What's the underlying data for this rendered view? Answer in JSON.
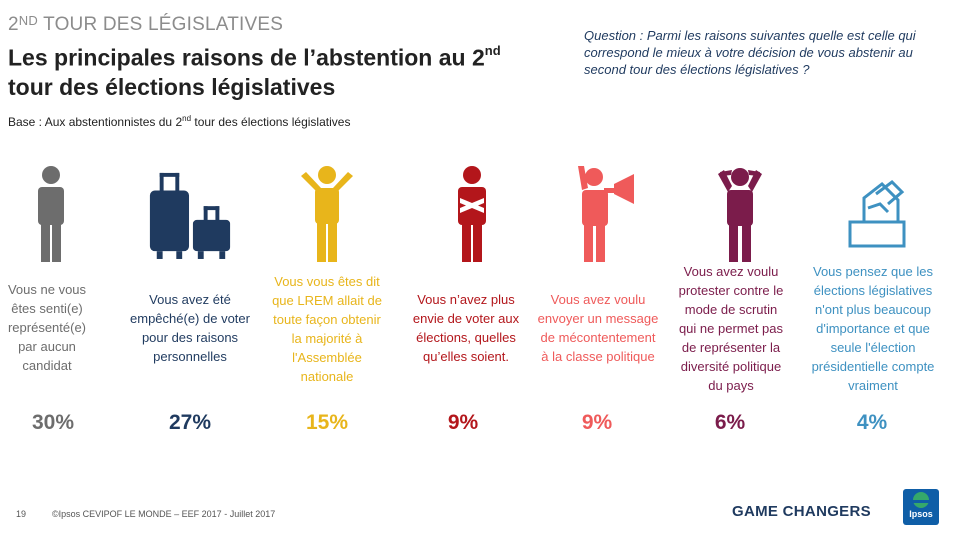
{
  "header": {
    "kicker_prefix": "2",
    "kicker_super": "ND",
    "kicker_rest": " TOUR DES LÉGISLATIVES",
    "title_part1": "Les principales raisons de l’abstention au 2",
    "title_super": "nd",
    "title_part2": " tour des élections législatives",
    "base_part1": "Base  :  Aux abstentionnistes du 2",
    "base_super": "nd",
    "base_part2": " tour des élections législatives",
    "question": "Question : Parmi les raisons suivantes quelle est celle qui correspond le mieux à votre décision de vous abstenir au second tour des élections législatives ?"
  },
  "chart_data": {
    "type": "bar",
    "title": "Les principales raisons de l’abstention au 2nd tour des élections législatives",
    "categories": [
      "Vous ne vous êtes senti(e) représenté(e) par aucun candidat",
      "Vous avez été empêché(e) de voter pour des raisons personnelles",
      "Vous vous êtes dit que LREM allait de toute façon obtenir la majorité à l'Assemblée nationale",
      "Vous n’avez plus envie de voter aux élections, quelles qu’elles soient.",
      "Vous avez voulu envoyer un message de mécontentement à la classe politique",
      "Vous avez voulu protester contre le mode de scrutin qui ne permet pas de représenter la diversité politique du pays",
      "Vous pensez que les élections législatives n'ont plus beaucoup d'importance et que seule l'élection présidentielle compte vraiment"
    ],
    "values": [
      30,
      27,
      15,
      9,
      9,
      6,
      4
    ],
    "labels": [
      "30%",
      "27%",
      "15%",
      "9%",
      "9%",
      "6%",
      "4%"
    ],
    "colors": [
      "#6d6d6d",
      "#1f3a5f",
      "#e8b51b",
      "#b3161b",
      "#ef5a5a",
      "#7b1c4b",
      "#3e91c1"
    ],
    "reason_lines": [
      [
        "Vous ne vous",
        "êtes senti(e)",
        "représenté(e)",
        "par aucun",
        "candidat"
      ],
      [
        "Vous avez été",
        "empêché(e) de voter",
        "pour des raisons",
        "personnelles"
      ],
      [
        "Vous vous êtes dit",
        "que LREM allait de",
        "toute façon obtenir",
        "la majorité à",
        "l'Assemblée",
        "nationale"
      ],
      [
        "Vous n’avez plus",
        "envie de voter aux",
        "élections, quelles",
        "qu’elles soient."
      ],
      [
        "Vous avez voulu",
        "envoyer un message",
        "de mécontentement",
        "à la classe politique"
      ],
      [
        "Vous avez voulu",
        "protester contre le",
        "mode de scrutin",
        "qui ne permet pas",
        "de représenter la",
        "diversité politique",
        "du pays"
      ],
      [
        "Vous pensez que les",
        "élections législatives",
        "n'ont plus beaucoup",
        "d'importance et que",
        "seule l'élection",
        "présidentielle compte",
        "vraiment"
      ]
    ],
    "icons": [
      "person-icon",
      "luggage-icon",
      "person-arms-open-icon",
      "person-arms-crossed-icon",
      "megaphone-person-icon",
      "person-hands-on-head-icon",
      "ballot-box-icon"
    ]
  },
  "footer": {
    "page_number": "19",
    "copyright": "©Ipsos  CEVIPOF LE MONDE – EEF 2017 -  Juillet 2017",
    "tagline": "GAME CHANGERS",
    "logo_text": "Ipsos"
  }
}
